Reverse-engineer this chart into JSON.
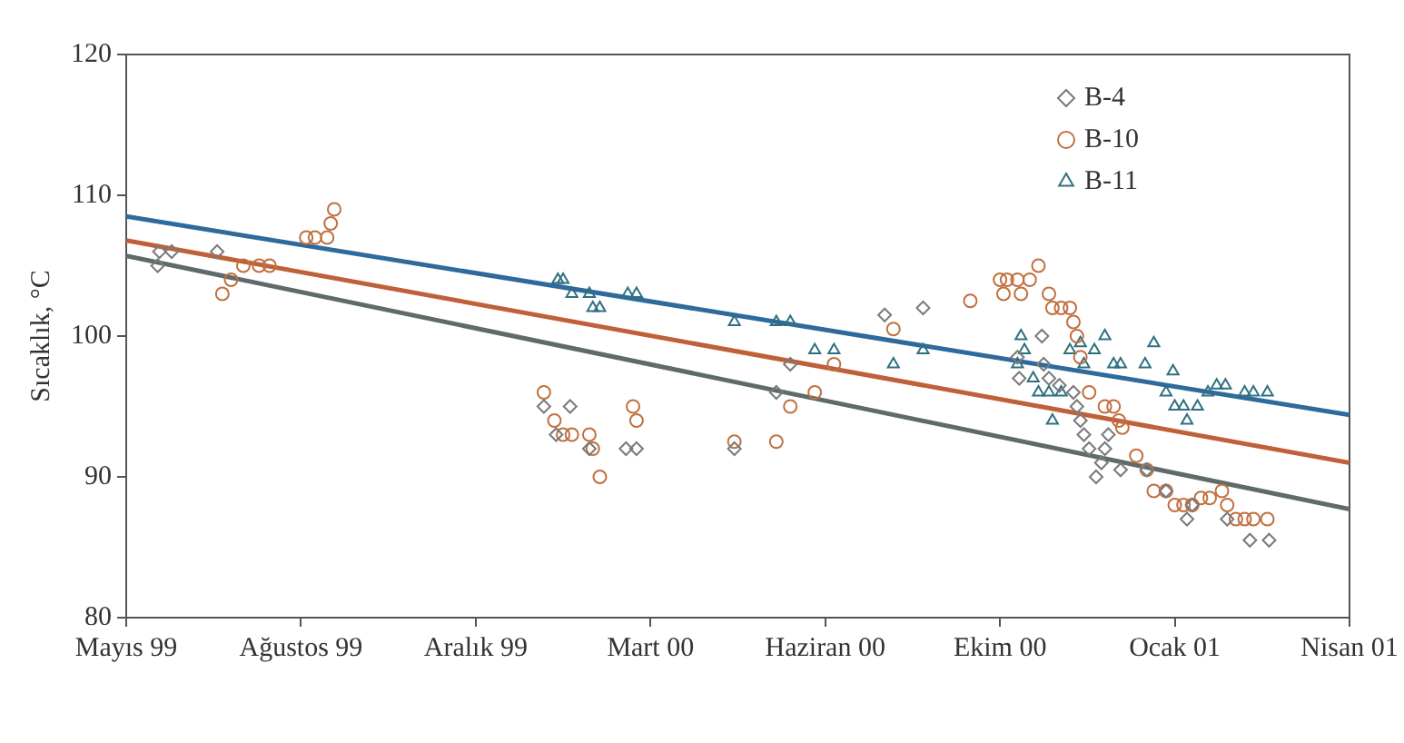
{
  "chart_data": {
    "type": "scatter",
    "ylabel": "Sıcaklık, °C",
    "xlim": [
      "1999-05-20",
      "2001-04-19"
    ],
    "ylim": [
      80,
      120
    ],
    "xticks": [
      {
        "value": "1999-05-20",
        "label": "Mayıs 99"
      },
      {
        "value": "1999-08-28",
        "label": "Ağustos 99"
      },
      {
        "value": "1999-12-06",
        "label": "Aralık 99"
      },
      {
        "value": "2000-03-15",
        "label": "Mart 00"
      },
      {
        "value": "2000-06-23",
        "label": "Haziran 00"
      },
      {
        "value": "2000-10-01",
        "label": "Ekim 00"
      },
      {
        "value": "2001-01-09",
        "label": "Ocak 01"
      },
      {
        "value": "2001-04-19",
        "label": "Nisan 01"
      }
    ],
    "yticks": [
      80,
      90,
      100,
      110,
      120
    ],
    "legend": "top right",
    "series": [
      {
        "name": "B-4",
        "type": "scatter",
        "marker": "diamond",
        "color": "#7a7a7a",
        "x": [
          "1999-06-07",
          "1999-06-08",
          "1999-06-15",
          "1999-07-11",
          "2000-01-14",
          "2000-01-21",
          "2000-01-29",
          "2000-02-09",
          "2000-03-01",
          "2000-03-07",
          "2000-05-02",
          "2000-05-26",
          "2000-06-03",
          "2000-07-27",
          "2000-08-18",
          "2000-10-11",
          "2000-10-12",
          "2000-10-25",
          "2000-10-26",
          "2000-10-29",
          "2000-11-04",
          "2000-11-12",
          "2000-11-14",
          "2000-11-16",
          "2000-11-18",
          "2000-11-21",
          "2000-11-25",
          "2000-11-28",
          "2000-11-30",
          "2000-12-02",
          "2000-12-09",
          "2000-12-24",
          "2001-01-04",
          "2001-01-16",
          "2001-01-19",
          "2001-02-08",
          "2001-02-21",
          "2001-03-04"
        ],
        "values": [
          105,
          106,
          106,
          106,
          95,
          93,
          95,
          92,
          92,
          92,
          92,
          96,
          98,
          101.5,
          102,
          98.5,
          97,
          100,
          98,
          97,
          96.5,
          96,
          95,
          94,
          93,
          92,
          90,
          91,
          92,
          93,
          90.5,
          90.5,
          89,
          87,
          88,
          87,
          85.5,
          85.5
        ]
      },
      {
        "name": "B-10",
        "type": "scatter",
        "marker": "circle",
        "color": "#c0703f",
        "x": [
          "1999-07-14",
          "1999-07-19",
          "1999-07-26",
          "1999-08-04",
          "1999-08-10",
          "1999-08-31",
          "1999-09-05",
          "1999-09-12",
          "1999-09-14",
          "1999-09-16",
          "2000-01-14",
          "2000-01-20",
          "2000-01-25",
          "2000-01-30",
          "2000-02-09",
          "2000-02-11",
          "2000-02-15",
          "2000-03-05",
          "2000-03-07",
          "2000-05-02",
          "2000-05-26",
          "2000-06-03",
          "2000-06-17",
          "2000-06-28",
          "2000-08-01",
          "2000-09-14",
          "2000-10-01",
          "2000-10-03",
          "2000-10-05",
          "2000-10-11",
          "2000-10-13",
          "2000-10-18",
          "2000-10-23",
          "2000-10-29",
          "2000-10-31",
          "2000-11-05",
          "2000-11-10",
          "2000-11-12",
          "2000-11-14",
          "2000-11-16",
          "2000-11-21",
          "2000-11-30",
          "2000-12-05",
          "2000-12-08",
          "2000-12-10",
          "2000-12-18",
          "2000-12-24",
          "2000-12-28",
          "2001-01-04",
          "2001-01-09",
          "2001-01-14",
          "2001-01-19",
          "2001-01-24",
          "2001-01-29",
          "2001-02-05",
          "2001-02-08",
          "2001-02-13",
          "2001-02-18",
          "2001-02-23",
          "2001-03-03"
        ],
        "values": [
          103,
          104,
          105,
          105,
          105,
          107,
          107,
          107,
          108,
          109,
          96,
          94,
          93,
          93,
          93,
          92,
          90,
          95,
          94,
          92.5,
          92.5,
          95,
          96,
          98,
          100.5,
          102.5,
          104,
          103,
          104,
          104,
          103,
          104,
          105,
          103,
          102,
          102,
          102,
          101,
          100,
          98.5,
          96,
          95,
          95,
          94,
          93.5,
          91.5,
          90.5,
          89,
          89,
          88,
          88,
          88,
          88.5,
          88.5,
          89,
          88,
          87,
          87,
          87,
          87
        ]
      },
      {
        "name": "B-11",
        "type": "scatter",
        "marker": "triangle",
        "color": "#2f7080",
        "x": [
          "2000-01-22",
          "2000-01-25",
          "2000-01-30",
          "2000-02-09",
          "2000-02-11",
          "2000-02-15",
          "2000-03-02",
          "2000-03-07",
          "2000-05-02",
          "2000-05-26",
          "2000-06-03",
          "2000-06-17",
          "2000-06-28",
          "2000-08-01",
          "2000-08-18",
          "2000-10-11",
          "2000-10-13",
          "2000-10-15",
          "2000-10-20",
          "2000-10-23",
          "2000-10-29",
          "2000-10-31",
          "2000-11-05",
          "2000-11-10",
          "2000-11-16",
          "2000-11-18",
          "2000-11-24",
          "2000-11-30",
          "2000-12-05",
          "2000-12-09",
          "2000-12-23",
          "2000-12-28",
          "2001-01-04",
          "2001-01-08",
          "2001-01-09",
          "2001-01-14",
          "2001-01-16",
          "2001-01-22",
          "2001-01-28",
          "2001-02-02",
          "2001-02-07",
          "2001-02-18",
          "2001-02-23",
          "2001-03-03"
        ],
        "values": [
          104,
          104,
          103,
          103,
          102,
          102,
          103,
          103,
          101,
          101,
          101,
          99,
          99,
          98,
          99,
          98,
          100,
          99,
          97,
          96,
          96,
          94,
          96,
          99,
          99.5,
          98,
          99,
          100,
          98,
          98,
          98,
          99.5,
          96,
          97.5,
          95,
          95,
          94,
          95,
          96,
          96.5,
          96.5,
          96,
          96,
          96
        ]
      },
      {
        "type": "line",
        "marker": "none",
        "color": "#2e6a9c",
        "x": [
          "1999-05-20",
          "2001-04-19"
        ],
        "values": [
          108.5,
          94.4
        ]
      },
      {
        "type": "line",
        "marker": "none",
        "color": "#c0603a",
        "x": [
          "1999-05-20",
          "2001-04-19"
        ],
        "values": [
          106.8,
          91
        ]
      },
      {
        "type": "line",
        "marker": "none",
        "color": "#5f6b6b",
        "x": [
          "1999-05-20",
          "2001-04-19"
        ],
        "values": [
          105.7,
          87.7
        ]
      }
    ]
  }
}
